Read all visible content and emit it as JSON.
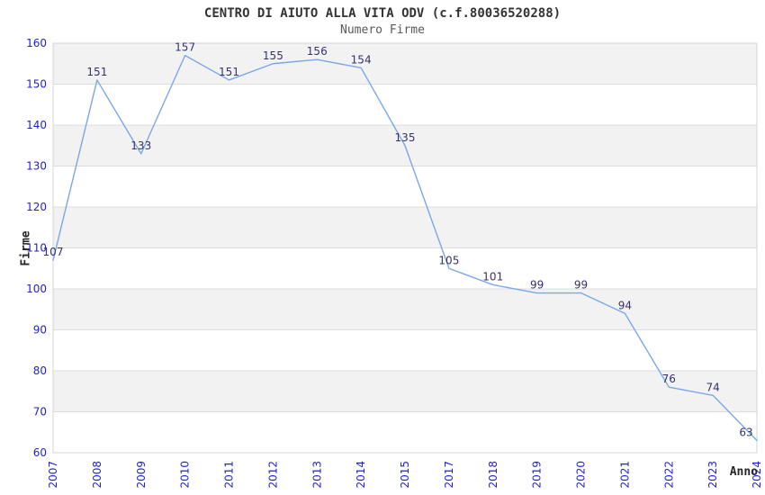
{
  "header": {
    "title": "CENTRO DI AIUTO ALLA VITA ODV (c.f.80036520288)",
    "subtitle": "Numero Firme"
  },
  "chart_data": {
    "type": "line",
    "title": "CENTRO DI AIUTO ALLA VITA ODV (c.f.80036520288)",
    "subtitle": "Numero Firme",
    "xlabel": "Anno",
    "ylabel": "Firme",
    "categories": [
      "2007",
      "2008",
      "2009",
      "2010",
      "2011",
      "2012",
      "2013",
      "2014",
      "2015",
      "2017",
      "2018",
      "2019",
      "2020",
      "2021",
      "2022",
      "2023",
      "2024"
    ],
    "values": [
      107,
      151,
      133,
      157,
      151,
      155,
      156,
      154,
      135,
      105,
      101,
      99,
      99,
      94,
      76,
      74,
      63
    ],
    "ylim": [
      60,
      160
    ],
    "yticks": [
      60,
      70,
      80,
      90,
      100,
      110,
      120,
      130,
      140,
      150,
      160
    ],
    "ytick_step": 10,
    "grid": true,
    "legend": false,
    "banded_background": true,
    "colors": {
      "line": "#79a7e8",
      "data_label": "#333370",
      "tick_label": "#2222cc",
      "band": "#f2f2f2",
      "grid": "#dcdcdc",
      "border": "#d4d4d4",
      "title": "#333333",
      "subtitle": "#595959",
      "axis_title": "#262626"
    }
  }
}
